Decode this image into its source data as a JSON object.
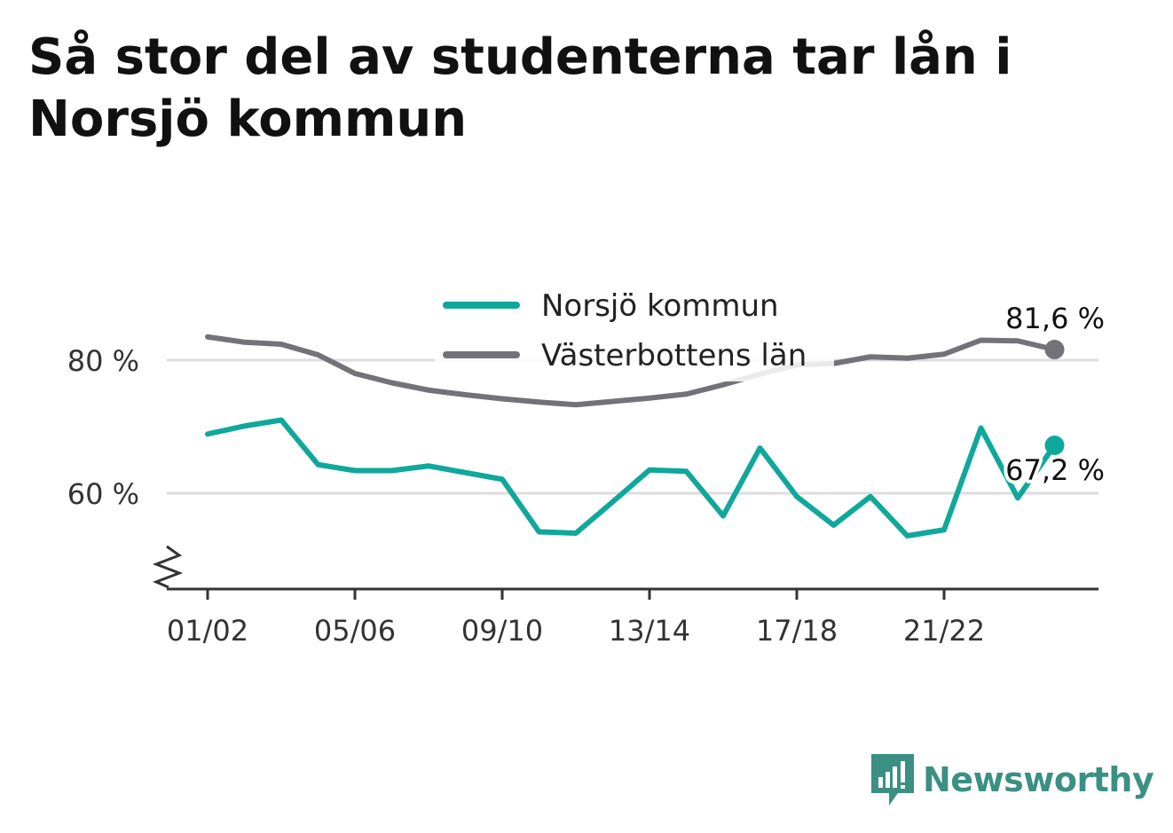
{
  "title": "Så stor del av studenterna tar lån i Norsjö kommun",
  "brand": {
    "name": "Newsworthy",
    "color": "#3b8f83"
  },
  "chart_data": {
    "type": "line",
    "title": "Så stor del av studenterna tar lån i Norsjö kommun",
    "xlabel": "",
    "ylabel": "",
    "x_tick_labels": [
      "01/02",
      "05/06",
      "09/10",
      "13/14",
      "17/18",
      "21/22"
    ],
    "x_tick_indices": [
      0,
      4,
      8,
      12,
      16,
      20
    ],
    "y_ticks": [
      {
        "value": 60,
        "label": "60 %"
      },
      {
        "value": 80,
        "label": "80 %"
      }
    ],
    "ylim": [
      45.5,
      90
    ],
    "axis_break": true,
    "grid": true,
    "legend_position": "top-center",
    "series": [
      {
        "name": "Norsjö kommun",
        "color": "#0fa89b",
        "end_label": "67,2 %",
        "values": [
          68.9,
          70.1,
          71.0,
          64.3,
          63.4,
          63.4,
          64.1,
          63.1,
          62.1,
          54.2,
          54.0,
          58.7,
          63.5,
          63.3,
          56.6,
          66.8,
          59.5,
          55.2,
          59.5,
          53.6,
          54.5,
          69.8,
          59.3,
          67.2
        ]
      },
      {
        "name": "Västerbottens län",
        "color": "#737278",
        "end_label": "81,6 %",
        "values": [
          83.5,
          82.7,
          82.4,
          80.8,
          78.0,
          76.6,
          75.5,
          74.8,
          74.2,
          73.7,
          73.3,
          73.8,
          74.3,
          74.9,
          76.3,
          77.9,
          79.3,
          79.5,
          80.5,
          80.3,
          80.9,
          83.0,
          82.9,
          81.6
        ]
      }
    ]
  }
}
